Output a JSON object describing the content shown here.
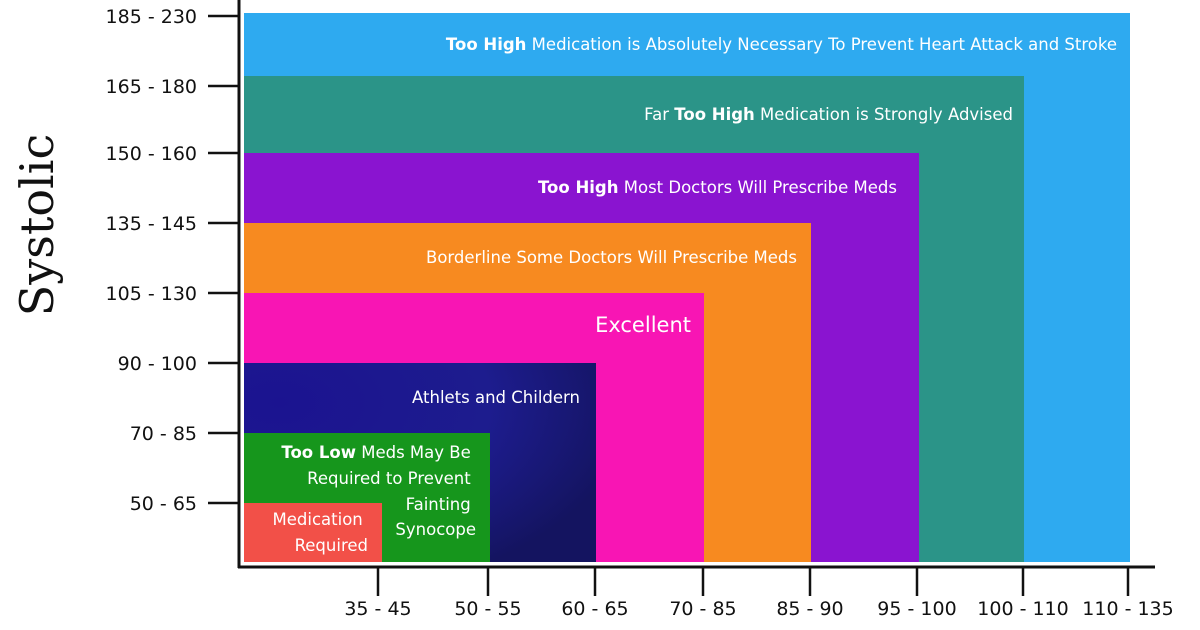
{
  "chart_data": {
    "type": "area",
    "ylabel": "Systolic",
    "xlabel": "",
    "y_categories": [
      "50 - 65",
      "70 - 85",
      "90 - 100",
      "105 - 130",
      "135 - 145",
      "150 - 160",
      "165 - 180",
      "185 - 230"
    ],
    "x_categories": [
      "35 - 45",
      "50 - 55",
      "60 - 65",
      "70 - 85",
      "85 - 90",
      "95 - 100",
      "100 - 110",
      "110 - 135"
    ],
    "zones": [
      {
        "systolic": "185 - 230",
        "diastolic": "110 - 135",
        "bold": "Too High",
        "text": " Medication is Absolutely Necessary To Prevent Heart Attack and Stroke",
        "color": "#2eaaf0"
      },
      {
        "systolic": "165 - 180",
        "diastolic": "100 - 110",
        "prefix": "Far ",
        "bold": "Too High",
        "text": " Medication is Strongly Advised",
        "color": "#2b9488"
      },
      {
        "systolic": "150 - 160",
        "diastolic": "95 - 100",
        "bold": "Too High",
        "text": " Most  Doctors Will Prescribe Meds",
        "color": "#8a14d0"
      },
      {
        "systolic": "135 - 145",
        "diastolic": "85 - 90",
        "text": "Borderline Some Doctors Will Prescribe Meds",
        "color": "#f78a20"
      },
      {
        "systolic": "105 - 130",
        "diastolic": "70 - 85",
        "text": "Excellent",
        "color": "#f815b4"
      },
      {
        "systolic": "90 - 100",
        "diastolic": "60 - 65",
        "text": "Athlets and Childern",
        "color": "#1c1a8c"
      },
      {
        "systolic": "70 - 85",
        "diastolic": "50 - 55",
        "bold": "Too Low",
        "text": " Meds May Be Required to Prevent Fainting Synocope",
        "color": "#16961c"
      },
      {
        "systolic": "50 - 65",
        "diastolic": "35 - 45",
        "text": "Medication Required",
        "color": "#f25048"
      }
    ]
  }
}
